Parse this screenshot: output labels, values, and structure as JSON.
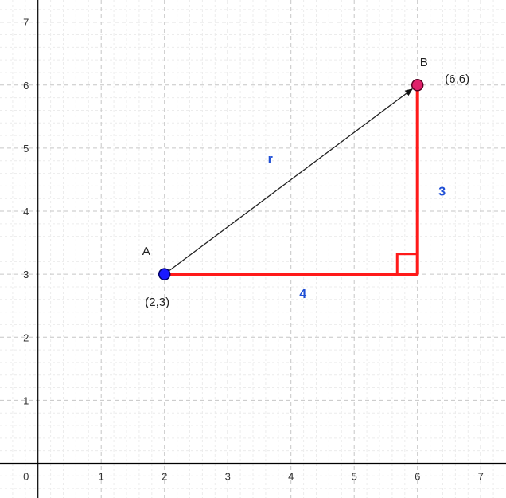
{
  "canvas": {
    "background": "#ffffff",
    "grid": true,
    "grid_color_major": "#c6c6c6",
    "grid_color_minor": "#ececec",
    "axis_color": "#000000",
    "x_range": [
      -0.6,
      7.4
    ],
    "y_range": [
      -0.55,
      7.35
    ]
  },
  "axes": {
    "x_ticks": [
      {
        "value": 0,
        "label": "0"
      },
      {
        "value": 1,
        "label": "1"
      },
      {
        "value": 2,
        "label": "2"
      },
      {
        "value": 3,
        "label": "3"
      },
      {
        "value": 4,
        "label": "4"
      },
      {
        "value": 5,
        "label": "5"
      },
      {
        "value": 6,
        "label": "6"
      },
      {
        "value": 7,
        "label": "7"
      }
    ],
    "y_ticks": [
      {
        "value": 1,
        "label": "1"
      },
      {
        "value": 2,
        "label": "2"
      },
      {
        "value": 3,
        "label": "3"
      },
      {
        "value": 4,
        "label": "4"
      },
      {
        "value": 5,
        "label": "5"
      },
      {
        "value": 6,
        "label": "6"
      },
      {
        "value": 7,
        "label": "7"
      }
    ]
  },
  "points": {
    "A": {
      "name": "A",
      "x": 2,
      "y": 3,
      "coord_label": "(2,3)",
      "fill": "#1a1aff",
      "stroke": "#000066"
    },
    "B": {
      "name": "B",
      "x": 6,
      "y": 6,
      "coord_label": "(6,6)",
      "fill": "#e0206a",
      "stroke": "#5a0022"
    }
  },
  "vector": {
    "label": "r",
    "from": "A",
    "to": "B",
    "color": "#222222",
    "label_color": "#1f4fd6"
  },
  "legs": {
    "color": "#ff1a1a",
    "horizontal": {
      "label": "4",
      "from_x": 2,
      "to_x": 6,
      "y": 3
    },
    "vertical": {
      "label": "3",
      "x": 6,
      "from_y": 3,
      "to_y": 6
    },
    "label_color": "#1f4fd6"
  }
}
